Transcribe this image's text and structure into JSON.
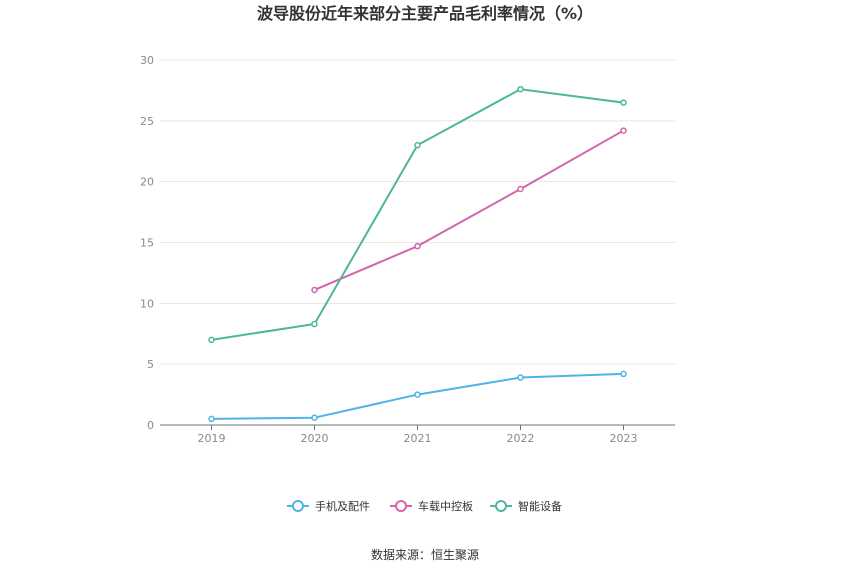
{
  "chart_data": {
    "type": "line",
    "title": "波导股份近年来部分主要产品毛利率情况（%）",
    "x": [
      "2019",
      "2020",
      "2021",
      "2022",
      "2023"
    ],
    "ylim": [
      0,
      30
    ],
    "yticks": [
      0,
      5,
      10,
      15,
      20,
      25,
      30
    ],
    "grid": true,
    "legend_position": "bottom",
    "series": [
      {
        "name": "手机及配件",
        "color": "#4eb3e8",
        "values": [
          0.5,
          0.6,
          2.5,
          3.9,
          4.2
        ]
      },
      {
        "name": "车载中控板",
        "color": "#d663ad",
        "values": [
          null,
          11.1,
          14.7,
          19.4,
          24.2
        ]
      },
      {
        "name": "智能设备",
        "color": "#4db69e",
        "values": [
          7.0,
          8.3,
          23.0,
          27.6,
          26.5
        ]
      }
    ]
  },
  "source": "数据来源：恒生聚源"
}
